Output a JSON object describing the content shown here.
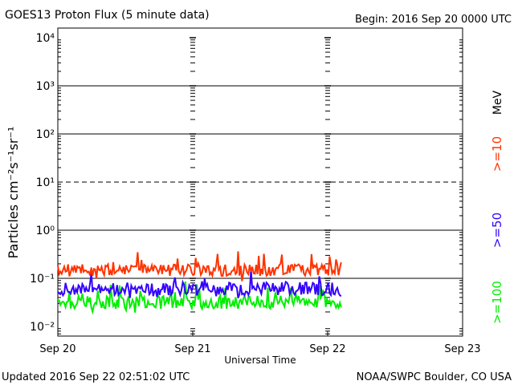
{
  "header": {
    "title": "GOES13 Proton Flux (5 minute data)",
    "begin": "Begin: 2016 Sep 20 0000 UTC"
  },
  "footer": {
    "updated": "Updated 2016 Sep 22 02:51:02 UTC",
    "credit": "NOAA/SWPC Boulder, CO USA"
  },
  "axes": {
    "xlabel": "Universal Time",
    "ylabel": "Particles cm⁻²s⁻¹sr⁻¹",
    "x_ticks": [
      "Sep 20",
      "Sep 21",
      "Sep 22",
      "Sep 23"
    ],
    "y_ticks": [
      "10⁻²",
      "10⁻¹",
      "10⁰",
      "10¹",
      "10²",
      "10³",
      "10⁴"
    ]
  },
  "legend": {
    "unit": "MeV",
    "items": [
      {
        "label": ">=10",
        "color": "#ff3300"
      },
      {
        "label": ">=50",
        "color": "#3300ff"
      },
      {
        "label": ">=100",
        "color": "#00ee00"
      }
    ]
  },
  "chart_data": {
    "type": "line",
    "title": "GOES13 Proton Flux (5 minute data)",
    "xlabel": "Universal Time",
    "ylabel": "Particles cm^-2 s^-1 sr^-1",
    "yscale": "log",
    "ylim_log10": [
      -2.2,
      4.2
    ],
    "xlim_days": [
      0,
      3
    ],
    "x_tick_days": [
      0,
      1,
      2,
      3
    ],
    "categories": [
      "Sep 20",
      "Sep 21",
      "Sep 22",
      "Sep 23"
    ],
    "threshold_log10": 1,
    "data_end_day": 2.1,
    "series": [
      {
        "name": ">=10 MeV",
        "color": "#ff3300",
        "log10_base": -0.83,
        "log10_jitter": 0.12,
        "log10_spike": 0.35
      },
      {
        "name": ">=50 MeV",
        "color": "#3300ff",
        "log10_base": -1.22,
        "log10_jitter": 0.14,
        "log10_spike": 0.28
      },
      {
        "name": ">=100 MeV",
        "color": "#00ee00",
        "log10_base": -1.5,
        "log10_jitter": 0.14,
        "log10_spike": 0.3
      }
    ]
  }
}
